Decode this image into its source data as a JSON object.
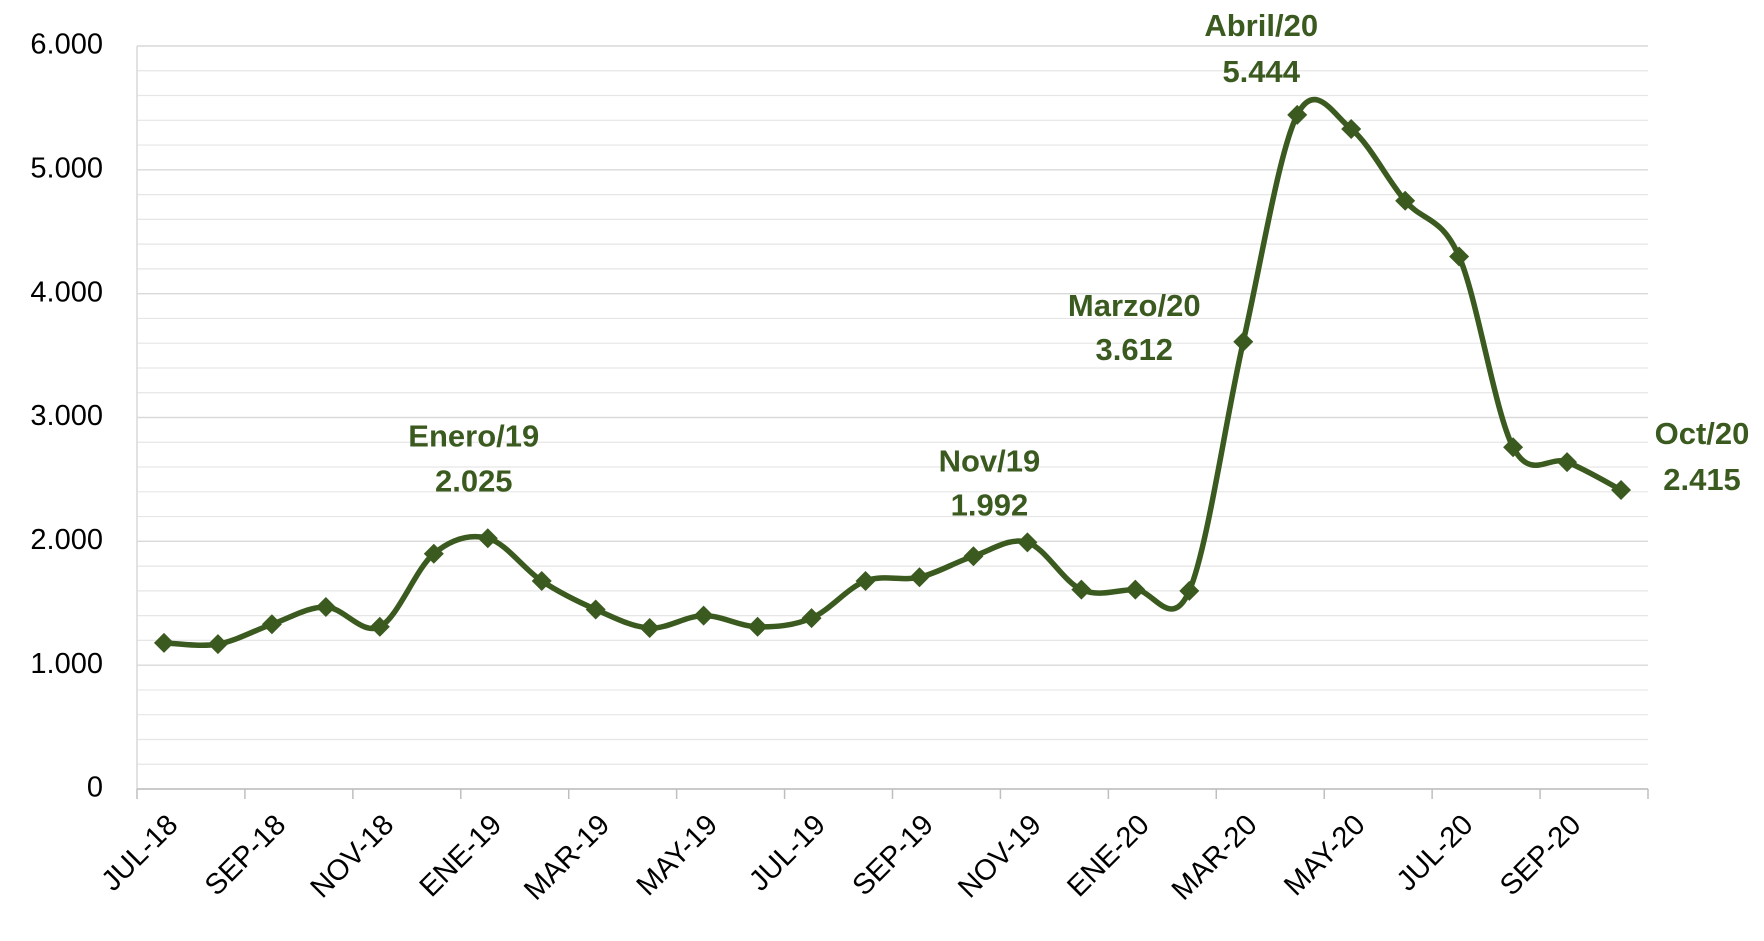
{
  "chart_data": {
    "type": "line",
    "categories": [
      "JUL-18",
      null,
      "SEP-18",
      null,
      "NOV-18",
      null,
      "ENE-19",
      null,
      "MAR-19",
      null,
      "MAY-19",
      null,
      "JUL-19",
      null,
      "SEP-19",
      null,
      "NOV-19",
      null,
      "ENE-20",
      null,
      "MAR-20",
      null,
      "MAY-20",
      null,
      "JUL-20",
      null,
      "SEP-20",
      null
    ],
    "series": [
      {
        "color": "#3b5a1f",
        "values": [
          1180,
          1170,
          1330,
          1470,
          1310,
          1900,
          2025,
          1680,
          1450,
          1300,
          1400,
          1310,
          1380,
          1680,
          1710,
          1880,
          1992,
          1610,
          1610,
          1600,
          3612,
          5444,
          5330,
          4750,
          4300,
          2760,
          2640,
          2415
        ],
        "point_labels": [
          null,
          null,
          null,
          null,
          null,
          null,
          "Enero/19",
          null,
          null,
          null,
          null,
          null,
          null,
          null,
          null,
          null,
          "Nov/19",
          null,
          null,
          null,
          "Marzo/20",
          "Abril/20",
          null,
          null,
          null,
          null,
          null,
          "Oct/20"
        ],
        "value_labels": [
          null,
          null,
          null,
          null,
          null,
          null,
          "2.025",
          null,
          null,
          null,
          null,
          null,
          null,
          null,
          null,
          null,
          "1.992",
          null,
          null,
          null,
          "3.612",
          "5.444",
          null,
          null,
          null,
          null,
          null,
          "2.415"
        ]
      }
    ],
    "ylim": [
      0,
      6000
    ],
    "yticks": [
      0,
      {
        "value": 1000,
        "label": "1.000"
      },
      {
        "value": 2000,
        "label": "2.000"
      },
      {
        "value": 3000,
        "label": "3.000"
      },
      {
        "value": 4000,
        "label": "4.000"
      },
      {
        "value": 5000,
        "label": "5.000"
      },
      {
        "value": 6000,
        "label": "6.000"
      }
    ],
    "grid": true
  }
}
